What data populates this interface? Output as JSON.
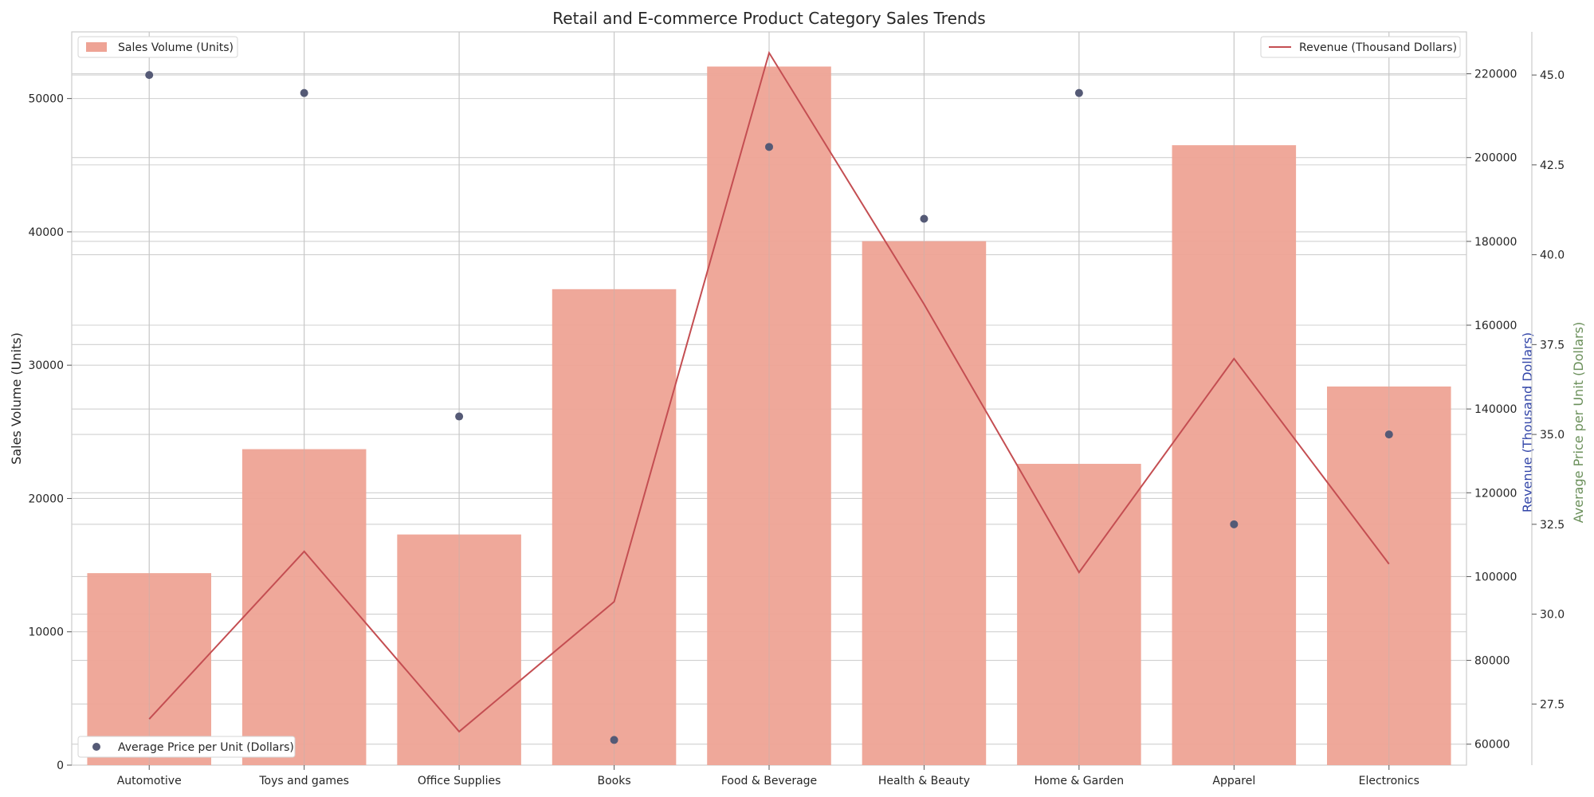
{
  "chart_data": {
    "type": "bar",
    "title": "Retail and E-commerce Product Category Sales Trends",
    "categories": [
      "Automotive",
      "Toys and games",
      "Office Supplies",
      "Books",
      "Food & Beverage",
      "Health & Beauty",
      "Home & Garden",
      "Apparel",
      "Electronics"
    ],
    "series": [
      {
        "name": "Sales Volume (Units)",
        "type": "bar",
        "axis": "left",
        "color": "#eea395",
        "values": [
          14400,
          23700,
          17300,
          35700,
          52400,
          39300,
          22600,
          46500,
          28400
        ]
      },
      {
        "name": "Revenue (Thousand Dollars)",
        "type": "line",
        "axis": "right",
        "color": "#c44e52",
        "values": [
          66000,
          106000,
          63000,
          94000,
          225000,
          165000,
          101000,
          152000,
          103000
        ]
      },
      {
        "name": "Average Price per Unit (Dollars)",
        "type": "scatter",
        "axis": "right2",
        "color": "#555a76",
        "values": [
          45.0,
          44.5,
          35.5,
          26.5,
          43.0,
          41.0,
          44.5,
          32.5,
          35.0
        ]
      }
    ],
    "axes": {
      "left": {
        "label": "Sales Volume (Units)",
        "ylim": [
          0,
          55000
        ],
        "ticks": [
          0,
          10000,
          20000,
          30000,
          40000,
          50000
        ],
        "tick_labels": [
          "0",
          "10000",
          "20000",
          "30000",
          "40000",
          "50000"
        ]
      },
      "right": {
        "label": "Revenue (Thousand Dollars)",
        "label_color": "#3245a8",
        "ylim": [
          55000,
          230000
        ],
        "ticks": [
          60000,
          80000,
          100000,
          120000,
          140000,
          160000,
          180000,
          200000,
          220000
        ],
        "tick_labels": [
          "60000",
          "80000",
          "100000",
          "120000",
          "140000",
          "160000",
          "180000",
          "200000",
          "220000"
        ]
      },
      "right2": {
        "label": "Average Price per Unit (Dollars)",
        "label_color": "#6a8f5a",
        "ylim": [
          25.8,
          46.2
        ],
        "ticks": [
          27.5,
          30.0,
          32.5,
          35.0,
          37.5,
          40.0,
          42.5,
          45.0
        ],
        "tick_labels": [
          "27.5",
          "30.0",
          "32.5",
          "35.0",
          "37.5",
          "40.0",
          "42.5",
          "45.0"
        ]
      }
    },
    "grid": true,
    "legend": {
      "bars": "top-left",
      "line": "top-right",
      "scatter": "bottom-left"
    }
  }
}
